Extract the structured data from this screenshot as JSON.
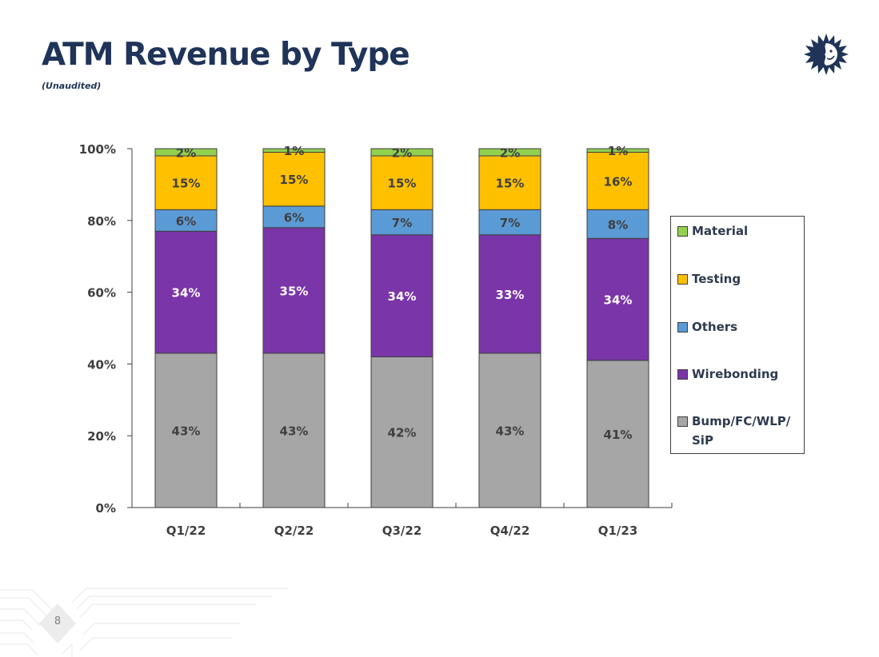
{
  "slide": {
    "title": "ATM Revenue by Type",
    "subtitle": "(Unaudited)",
    "page_number": "8",
    "logo_icon": "sun-face-logo-icon"
  },
  "chart_data": {
    "type": "bar",
    "stacked": true,
    "percent_stacked": true,
    "title": "ATM Revenue by Type",
    "xlabel": "",
    "ylabel": "",
    "ylim": [
      0,
      100
    ],
    "yticks": [
      0,
      20,
      40,
      60,
      80,
      100
    ],
    "ytick_labels": [
      "0%",
      "20%",
      "40%",
      "60%",
      "80%",
      "100%"
    ],
    "grid": false,
    "legend_position": "right",
    "categories": [
      "Q1/22",
      "Q2/22",
      "Q3/22",
      "Q4/22",
      "Q1/23"
    ],
    "series": [
      {
        "name": "Bump/FC/WLP/SiP",
        "color": "#a6a6a6",
        "label_color": "#3f3f3f",
        "values": [
          43,
          43,
          42,
          43,
          41
        ]
      },
      {
        "name": "Wirebonding",
        "color": "#7a35a8",
        "label_color": "#ffffff",
        "values": [
          34,
          35,
          34,
          33,
          34
        ]
      },
      {
        "name": "Others",
        "color": "#5b9bd5",
        "label_color": "#3f3f3f",
        "values": [
          6,
          6,
          7,
          7,
          8
        ]
      },
      {
        "name": "Testing",
        "color": "#ffc000",
        "label_color": "#3f3f3f",
        "values": [
          15,
          15,
          15,
          15,
          16
        ]
      },
      {
        "name": "Material",
        "color": "#92d050",
        "label_color": "#3f3f3f",
        "values": [
          2,
          1,
          2,
          2,
          1
        ]
      }
    ],
    "legend_order": [
      "Material",
      "Testing",
      "Others",
      "Wirebonding",
      "Bump/FC/WLP/SiP"
    ]
  }
}
